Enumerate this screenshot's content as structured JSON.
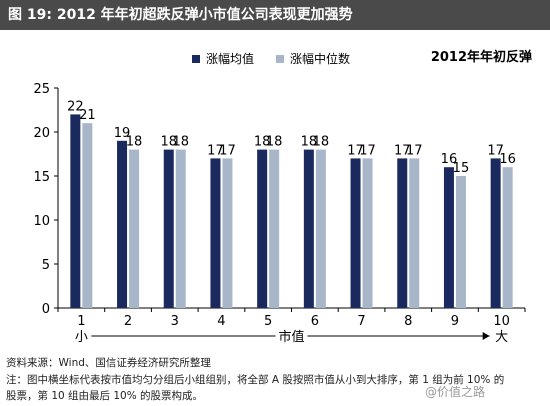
{
  "figure": {
    "label": "图 19:",
    "title": "2012 年年初超跌反弹小市值公司表现更加强势"
  },
  "chart_data": {
    "type": "bar",
    "title": "2012年年初反弹",
    "categories": [
      "1",
      "2",
      "3",
      "4",
      "5",
      "6",
      "7",
      "8",
      "9",
      "10"
    ],
    "series": [
      {
        "name": "涨幅均值",
        "values": [
          22,
          19,
          18,
          17,
          18,
          18,
          17,
          17,
          16,
          17
        ],
        "color": "#1b2a5e"
      },
      {
        "name": "涨幅中位数",
        "values": [
          21,
          18,
          18,
          17,
          18,
          18,
          17,
          17,
          15,
          16
        ],
        "color": "#a7b6c9"
      }
    ],
    "ylim": [
      0,
      25
    ],
    "yticks": [
      0,
      5,
      10,
      15,
      20,
      25
    ],
    "xlabel": "市值",
    "x_left_label": "小",
    "x_right_label": "大",
    "grid": false,
    "legend_position": "top-center"
  },
  "footer": {
    "source": "资料来源：Wind、国信证券经济研究所整理",
    "note_line1": "注：图中横坐标代表按市值均匀分组后小组组别，将全部 A 股按照市值从小到大排序，第 1 组为前 10% 的",
    "note_line2": "股票，第 10 组由最后 10% 的股票构成。"
  },
  "watermark": "@价值之路"
}
